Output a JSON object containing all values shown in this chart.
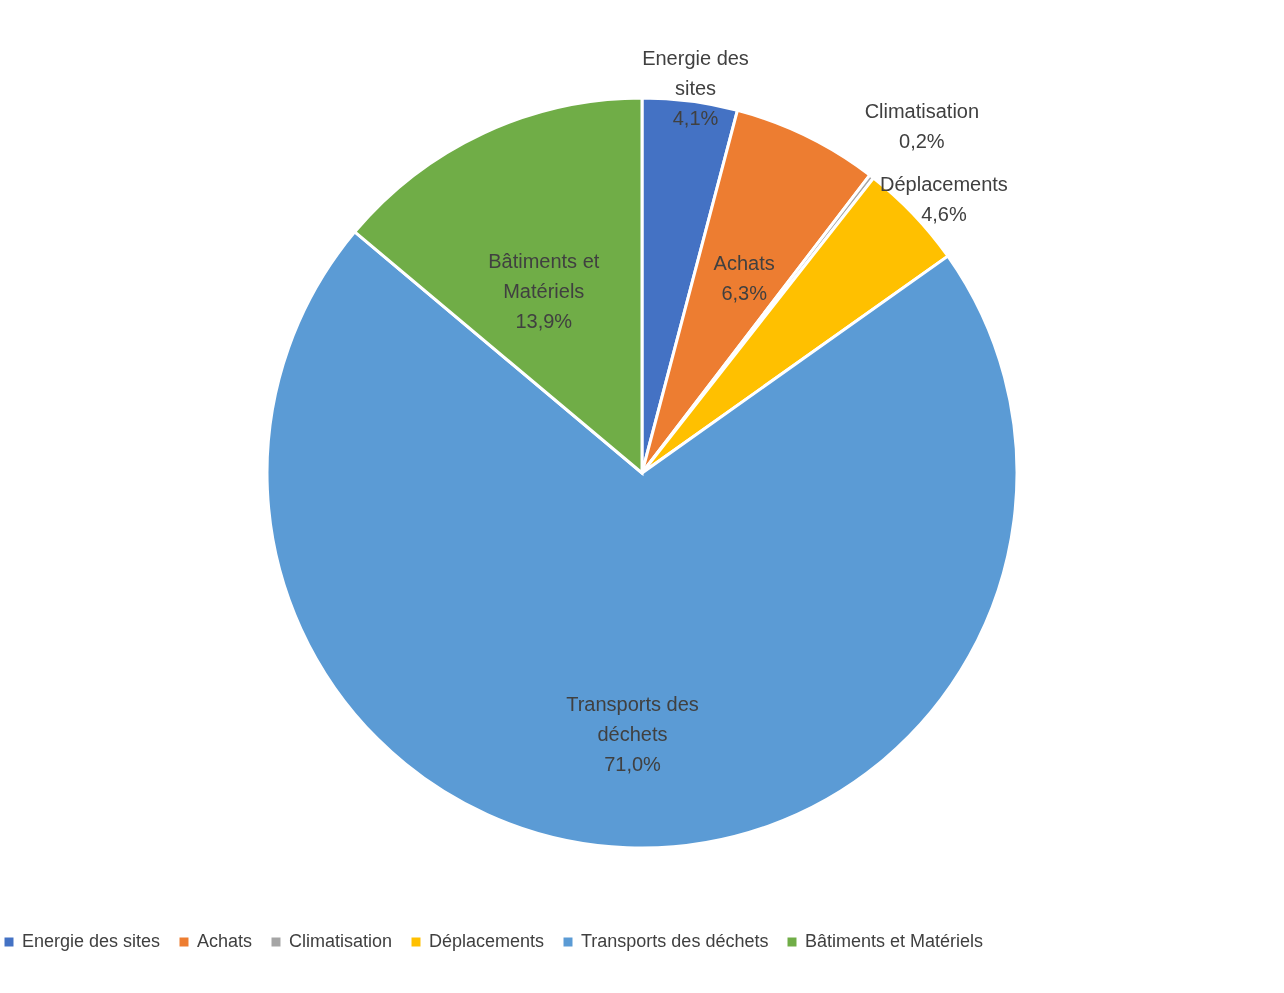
{
  "chart_data": {
    "type": "pie",
    "categories": [
      "Energie des sites",
      "Achats",
      "Climatisation",
      "Déplacements",
      "Transports des déchets",
      "Bâtiments et Matériels"
    ],
    "values": [
      4.1,
      6.3,
      0.2,
      4.6,
      71.0,
      13.9
    ],
    "colors": [
      "#4472c4",
      "#ed7d31",
      "#a5a5a5",
      "#ffc000",
      "#5b9bd5",
      "#70ad47"
    ],
    "value_labels": [
      "4,1%",
      "6,3%",
      "0,2%",
      "4,6%",
      "71,0%",
      "13,9%"
    ],
    "legend": "bottom"
  }
}
